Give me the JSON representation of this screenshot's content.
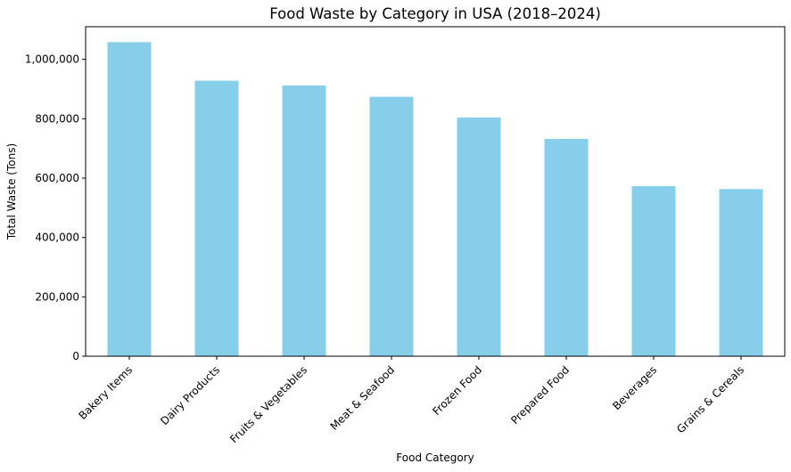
{
  "chart_data": {
    "type": "bar",
    "title": "Food Waste by Category in USA (2018–2024)",
    "xlabel": "Food Category",
    "ylabel": "Total Waste (Tons)",
    "categories": [
      "Bakery Items",
      "Dairy Products",
      "Fruits & Vegetables",
      "Meat & Seafood",
      "Frozen Food",
      "Prepared Food",
      "Beverages",
      "Grains & Cereals"
    ],
    "values": [
      1058000,
      928000,
      912000,
      874000,
      804000,
      732000,
      573000,
      563000
    ],
    "ylim": [
      0,
      1110000
    ],
    "yticks": [
      0,
      200000,
      400000,
      600000,
      800000,
      1000000
    ],
    "ytick_labels": [
      "0",
      "200,000",
      "400,000",
      "600,000",
      "800,000",
      "1,000,000"
    ],
    "bar_color": "#87CEEB",
    "grid": false,
    "legend": "none"
  }
}
